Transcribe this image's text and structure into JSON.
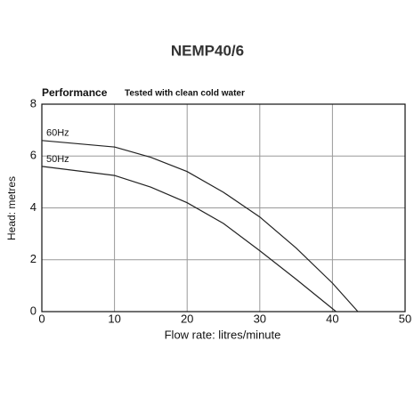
{
  "chart_data": {
    "type": "line",
    "title": "NEMP40/6",
    "subtitle_bold": "Performance",
    "subtitle": "Tested with clean cold water",
    "x_label": "Flow rate: litres/minute",
    "y_label": "Head: metres",
    "xlim": [
      0,
      50
    ],
    "xticks": [
      0,
      10,
      20,
      30,
      40,
      50
    ],
    "ylim": [
      0,
      8
    ],
    "yticks": [
      0,
      2,
      4,
      6,
      8
    ],
    "grid": true,
    "series": [
      {
        "name": "60Hz",
        "color": "#222222",
        "x": [
          0,
          10,
          15,
          20,
          25,
          30,
          35,
          40,
          43.5
        ],
        "values": [
          6.6,
          6.35,
          5.95,
          5.4,
          4.6,
          3.65,
          2.45,
          1.1,
          0
        ]
      },
      {
        "name": "50Hz",
        "color": "#222222",
        "x": [
          0,
          10,
          15,
          20,
          25,
          30,
          35,
          40.5
        ],
        "values": [
          5.6,
          5.25,
          4.8,
          4.2,
          3.4,
          2.35,
          1.25,
          0
        ]
      }
    ]
  }
}
